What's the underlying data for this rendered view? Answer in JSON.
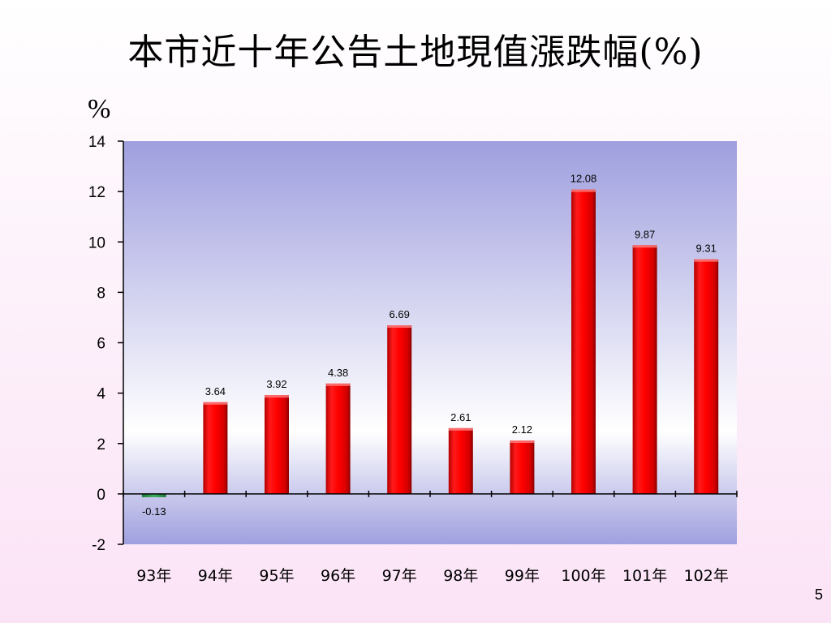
{
  "slide": {
    "title": "本市近十年公告土地現值漲跌幅(%)",
    "unit_label": "%",
    "page_number": "5"
  },
  "chart_data": {
    "type": "bar",
    "categories": [
      "93年",
      "94年",
      "95年",
      "96年",
      "97年",
      "98年",
      "99年",
      "100年",
      "101年",
      "102年"
    ],
    "values": [
      -0.13,
      3.64,
      3.92,
      4.38,
      6.69,
      2.61,
      2.12,
      12.08,
      9.87,
      9.31
    ],
    "data_labels": [
      "-0.13",
      "3.64",
      "3.92",
      "4.38",
      "6.69",
      "2.61",
      "2.12",
      "12.08",
      "9.87",
      "9.31"
    ],
    "ylim": [
      -2,
      14
    ],
    "yticks": [
      -2,
      0,
      2,
      4,
      6,
      8,
      10,
      12,
      14
    ],
    "title": "",
    "xlabel": "",
    "ylabel": "%",
    "grid": false,
    "colors": {
      "positive": "#ff0000",
      "negative": "#2e9e4f",
      "plot_top": "#9f9fdf",
      "plot_middle": "#ffffff",
      "plot_bottom": "#9f9fdf"
    }
  }
}
